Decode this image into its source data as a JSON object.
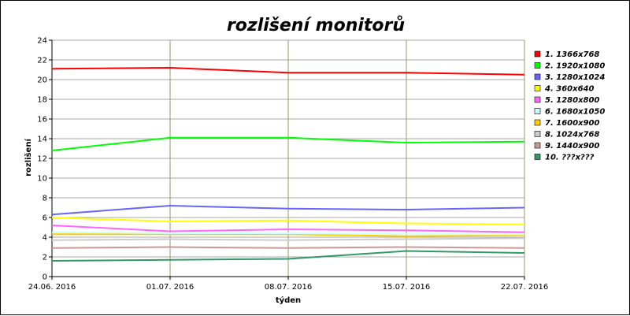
{
  "chart_data": {
    "type": "line",
    "title": "rozlišení monitorů",
    "xlabel": "týden",
    "ylabel": "rozlišení",
    "ylim": [
      0,
      24
    ],
    "ytick_step": 2,
    "grid": true,
    "legend_position": "right",
    "categories": [
      "24.06. 2016",
      "01.07. 2016",
      "08.07. 2016",
      "15.07. 2016",
      "22.07. 2016"
    ],
    "series": [
      {
        "name": "1. 1366x768",
        "color": "#ff0000",
        "values": [
          21.1,
          21.2,
          20.7,
          20.7,
          20.5
        ]
      },
      {
        "name": "2. 1920x1080",
        "color": "#00ff00",
        "values": [
          12.8,
          14.1,
          14.1,
          13.6,
          13.7
        ]
      },
      {
        "name": "3. 1280x1024",
        "color": "#6666ff",
        "values": [
          6.3,
          7.2,
          6.9,
          6.8,
          7.0
        ]
      },
      {
        "name": "4. 360x640",
        "color": "#ffff00",
        "values": [
          6.0,
          5.6,
          5.7,
          5.4,
          5.3
        ]
      },
      {
        "name": "5. 1280x800",
        "color": "#ff66ff",
        "values": [
          5.2,
          4.6,
          4.8,
          4.7,
          4.5
        ]
      },
      {
        "name": "6. 1680x1050",
        "color": "#ccffff",
        "values": [
          4.5,
          4.4,
          4.4,
          4.3,
          4.3
        ]
      },
      {
        "name": "7. 1600x900",
        "color": "#ffcc00",
        "values": [
          4.3,
          4.3,
          4.3,
          4.1,
          4.2
        ]
      },
      {
        "name": "8. 1024x768",
        "color": "#cccccc",
        "values": [
          3.7,
          3.8,
          3.7,
          3.8,
          3.9
        ]
      },
      {
        "name": "9. 1440x900",
        "color": "#cc9999",
        "values": [
          2.9,
          3.0,
          2.9,
          3.0,
          2.9
        ]
      },
      {
        "name": "10. ???x???",
        "color": "#339966",
        "values": [
          1.6,
          1.7,
          1.8,
          2.6,
          2.4
        ]
      }
    ]
  }
}
